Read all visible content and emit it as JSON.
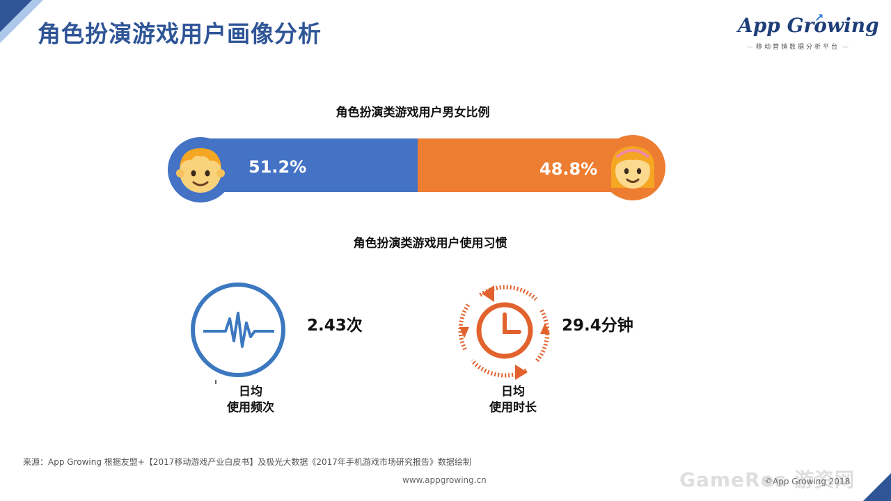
{
  "header": {
    "title": "角色扮演游戏用户画像分析",
    "logo_main": "App Growing",
    "logo_sub": "移动营销数据分析平台"
  },
  "gender": {
    "title": "角色扮演类游戏用户男女比例",
    "male_pct": "51.2%",
    "female_pct": "48.8%",
    "male_fraction": 0.512,
    "female_fraction": 0.488
  },
  "habits": {
    "title": "角色扮演类游戏用户使用习惯",
    "frequency_value": "2.43次",
    "frequency_label_line1": "日均",
    "frequency_label_line2": "使用频次",
    "duration_value": "29.4分钟",
    "duration_label_line1": "日均",
    "duration_label_line2": "使用时长"
  },
  "footer": {
    "source": "来源：App  Growing  根据友盟+【2017移动游戏产业白皮书】及极光大数据《2017年手机游戏市场研究报告》数据绘制",
    "url": "www.appgrowing.cn",
    "copyright": "©App Growing 2018",
    "watermark": "GameRes 游资网"
  },
  "colors": {
    "male": "#4472c4",
    "female": "#ed7d31",
    "title": "#2f5597"
  },
  "icons": [
    "male-face-icon",
    "female-face-icon",
    "pulse-icon",
    "clock-cycle-icon"
  ]
}
